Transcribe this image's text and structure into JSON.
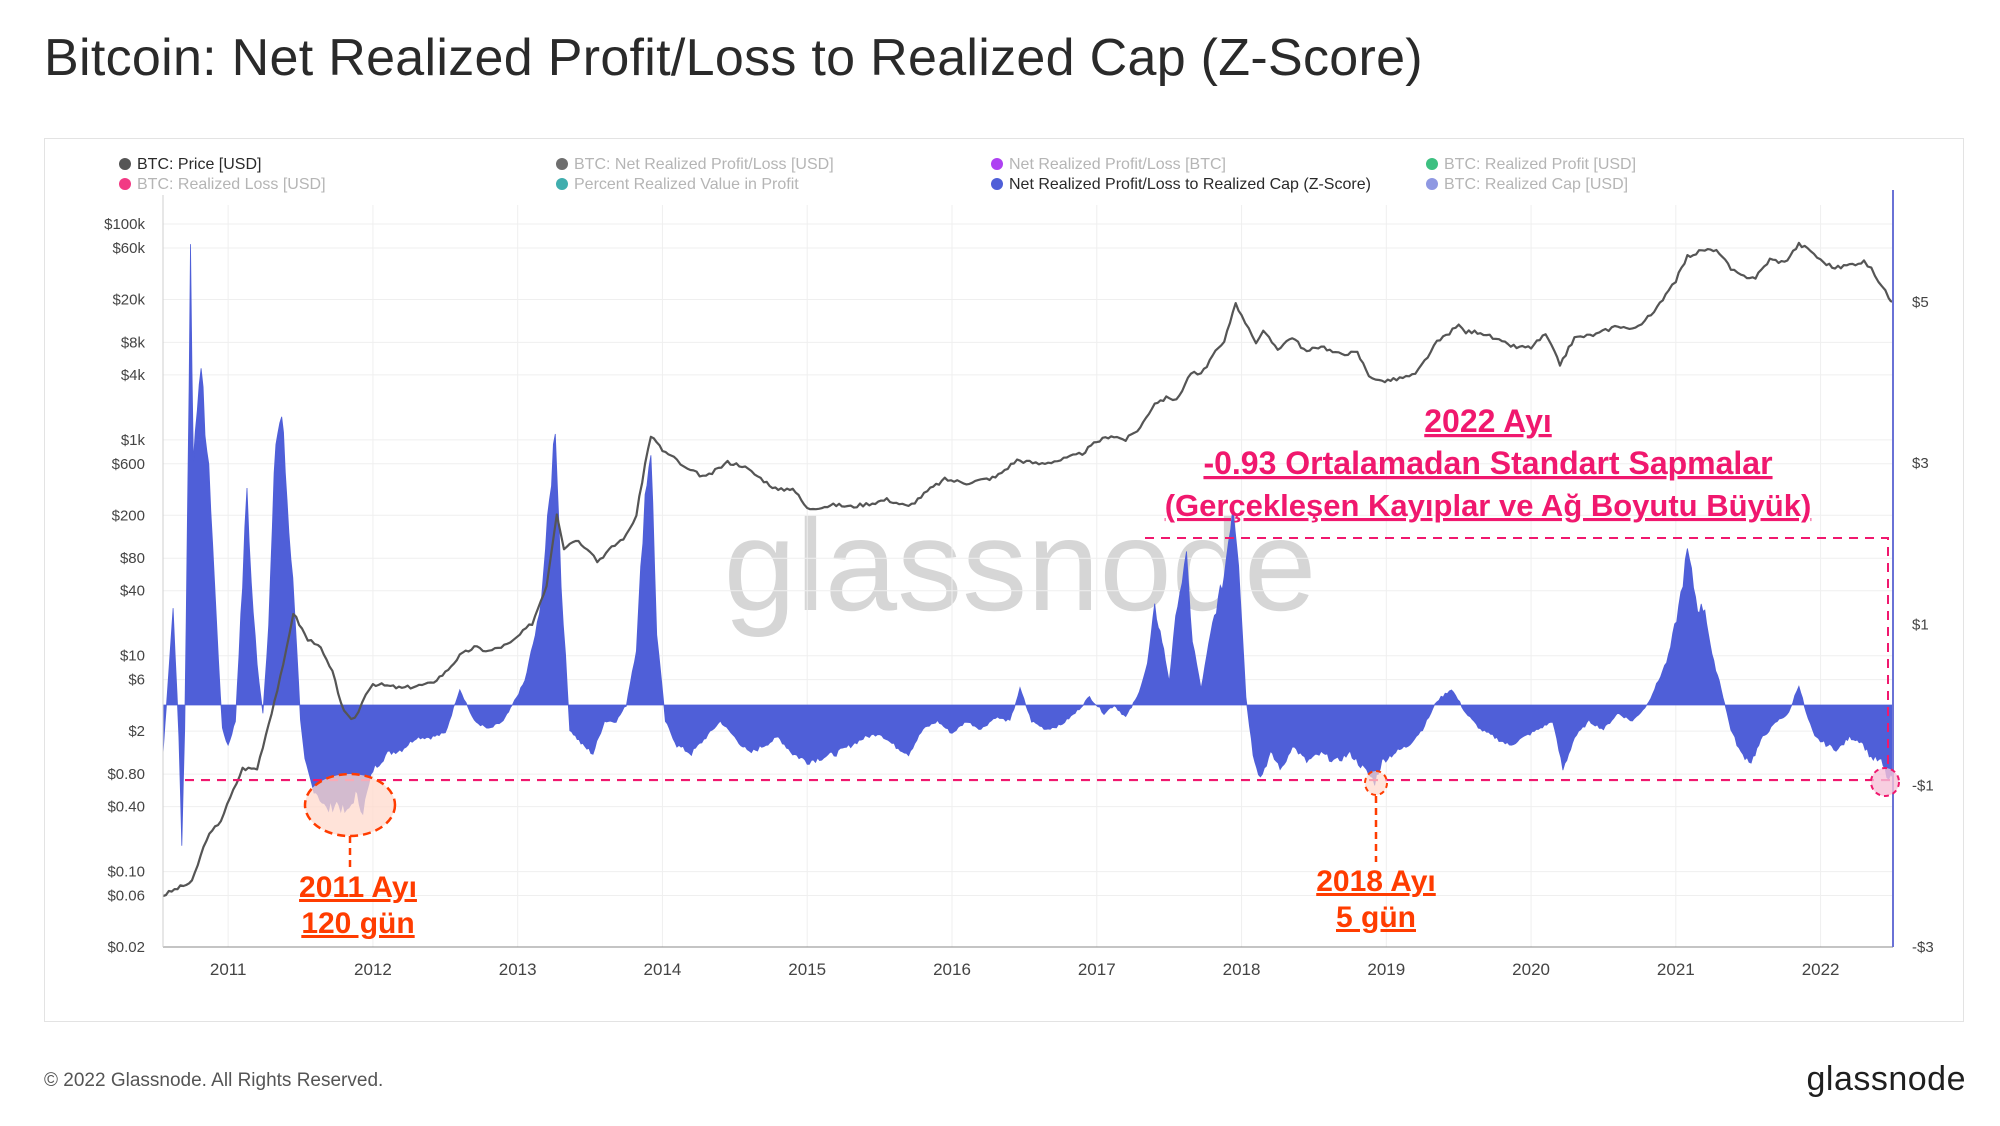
{
  "header": {
    "title": "Bitcoin: Net Realized Profit/Loss to Realized Cap (Z-Score)"
  },
  "footer": {
    "copyright": "© 2022 Glassnode. All Rights Reserved.",
    "logo": "glassnode"
  },
  "colors": {
    "price": "#555555",
    "zscore": "#4f5fd8",
    "annotation_orange": "#ff3c00",
    "annotation_pink": "#f0186e",
    "circle_fill": "#ffd9cc",
    "axis_line": "#6a72d6"
  },
  "chart_data": {
    "type": "line+area",
    "watermark": "glassnode",
    "legend": [
      {
        "label": "BTC: Price [USD]",
        "color": "#555555",
        "active": true
      },
      {
        "label": "BTC: Net Realized Profit/Loss [USD]",
        "color": "#555555",
        "active": false
      },
      {
        "label": "Net Realized Profit/Loss [BTC]",
        "color": "#a020f0",
        "active": false
      },
      {
        "label": "BTC: Realized Profit [USD]",
        "color": "#1bb56b",
        "active": false
      },
      {
        "label": "BTC: Realized Loss [USD]",
        "color": "#f0186e",
        "active": false
      },
      {
        "label": "Percent Realized Value in Profit",
        "color": "#1fa0a0",
        "active": false
      },
      {
        "label": "Net Realized Profit/Loss to Realized Cap (Z-Score)",
        "color": "#4f5fd8",
        "active": true
      },
      {
        "label": "BTC: Realized Cap [USD]",
        "color": "#7b86dd",
        "active": false
      }
    ],
    "x_axis": {
      "ticks": [
        "2011",
        "2012",
        "2013",
        "2014",
        "2015",
        "2016",
        "2017",
        "2018",
        "2019",
        "2020",
        "2021",
        "2022"
      ],
      "range": [
        2010.55,
        2022.5
      ]
    },
    "left_axis": {
      "scale": "log",
      "range": [
        0.02,
        150000
      ],
      "ticks": [
        {
          "v": 100000,
          "label": "$100k"
        },
        {
          "v": 60000,
          "label": "$60k"
        },
        {
          "v": 20000,
          "label": "$20k"
        },
        {
          "v": 8000,
          "label": "$8k"
        },
        {
          "v": 4000,
          "label": "$4k"
        },
        {
          "v": 1000,
          "label": "$1k"
        },
        {
          "v": 600,
          "label": "$600"
        },
        {
          "v": 200,
          "label": "$200"
        },
        {
          "v": 80,
          "label": "$80"
        },
        {
          "v": 40,
          "label": "$40"
        },
        {
          "v": 10,
          "label": "$10"
        },
        {
          "v": 6,
          "label": "$6"
        },
        {
          "v": 2,
          "label": "$2"
        },
        {
          "v": 0.8,
          "label": "$0.80"
        },
        {
          "v": 0.4,
          "label": "$0.40"
        },
        {
          "v": 0.1,
          "label": "$0.10"
        },
        {
          "v": 0.06,
          "label": "$0.06"
        },
        {
          "v": 0.02,
          "label": "$0.02"
        }
      ]
    },
    "right_axis": {
      "scale": "linear",
      "range": [
        -3.0,
        6.2
      ],
      "ticks": [
        {
          "v": 5,
          "label": "$5"
        },
        {
          "v": 3,
          "label": "$3"
        },
        {
          "v": 1,
          "label": "$1"
        },
        {
          "v": -1,
          "label": "-$1"
        },
        {
          "v": -3,
          "label": "-$3"
        }
      ]
    },
    "threshold_z": -0.93,
    "price_series": [
      [
        2010.55,
        0.06
      ],
      [
        2010.65,
        0.07
      ],
      [
        2010.75,
        0.08
      ],
      [
        2010.85,
        0.2
      ],
      [
        2010.95,
        0.3
      ],
      [
        2011.1,
        0.9
      ],
      [
        2011.2,
        0.9
      ],
      [
        2011.3,
        3
      ],
      [
        2011.38,
        8
      ],
      [
        2011.45,
        25
      ],
      [
        2011.55,
        14
      ],
      [
        2011.62,
        13
      ],
      [
        2011.72,
        7
      ],
      [
        2011.8,
        3
      ],
      [
        2011.85,
        2.5
      ],
      [
        2011.9,
        3
      ],
      [
        2011.95,
        4.5
      ],
      [
        2012.0,
        5.5
      ],
      [
        2012.2,
        5
      ],
      [
        2012.4,
        5.5
      ],
      [
        2012.5,
        7
      ],
      [
        2012.6,
        10
      ],
      [
        2012.7,
        12
      ],
      [
        2012.8,
        11
      ],
      [
        2012.95,
        13
      ],
      [
        2013.1,
        20
      ],
      [
        2013.2,
        45
      ],
      [
        2013.27,
        210
      ],
      [
        2013.32,
        100
      ],
      [
        2013.4,
        120
      ],
      [
        2013.5,
        95
      ],
      [
        2013.55,
        75
      ],
      [
        2013.65,
        100
      ],
      [
        2013.75,
        130
      ],
      [
        2013.82,
        200
      ],
      [
        2013.88,
        600
      ],
      [
        2013.92,
        1100
      ],
      [
        2014.0,
        800
      ],
      [
        2014.1,
        650
      ],
      [
        2014.15,
        550
      ],
      [
        2014.3,
        450
      ],
      [
        2014.45,
        620
      ],
      [
        2014.55,
        580
      ],
      [
        2014.7,
        420
      ],
      [
        2014.8,
        340
      ],
      [
        2014.9,
        360
      ],
      [
        2015.0,
        230
      ],
      [
        2015.1,
        240
      ],
      [
        2015.2,
        250
      ],
      [
        2015.3,
        240
      ],
      [
        2015.45,
        260
      ],
      [
        2015.55,
        280
      ],
      [
        2015.7,
        240
      ],
      [
        2015.85,
        350
      ],
      [
        2015.95,
        430
      ],
      [
        2016.1,
        400
      ],
      [
        2016.3,
        450
      ],
      [
        2016.45,
        650
      ],
      [
        2016.6,
        600
      ],
      [
        2016.75,
        650
      ],
      [
        2016.9,
        750
      ],
      [
        2017.0,
        960
      ],
      [
        2017.1,
        1100
      ],
      [
        2017.2,
        1000
      ],
      [
        2017.3,
        1300
      ],
      [
        2017.4,
        2200
      ],
      [
        2017.5,
        2500
      ],
      [
        2017.55,
        2300
      ],
      [
        2017.65,
        4200
      ],
      [
        2017.72,
        4000
      ],
      [
        2017.8,
        6000
      ],
      [
        2017.88,
        8000
      ],
      [
        2017.96,
        19000
      ],
      [
        2018.0,
        14000
      ],
      [
        2018.05,
        11000
      ],
      [
        2018.1,
        8000
      ],
      [
        2018.15,
        10000
      ],
      [
        2018.25,
        7000
      ],
      [
        2018.35,
        9000
      ],
      [
        2018.45,
        6500
      ],
      [
        2018.55,
        7500
      ],
      [
        2018.65,
        6300
      ],
      [
        2018.8,
        6400
      ],
      [
        2018.88,
        4000
      ],
      [
        2018.95,
        3500
      ],
      [
        2019.05,
        3600
      ],
      [
        2019.2,
        4000
      ],
      [
        2019.35,
        8000
      ],
      [
        2019.5,
        11500
      ],
      [
        2019.55,
        10000
      ],
      [
        2019.65,
        10000
      ],
      [
        2019.8,
        8000
      ],
      [
        2019.9,
        7200
      ],
      [
        2020.0,
        7200
      ],
      [
        2020.1,
        9500
      ],
      [
        2020.2,
        5000
      ],
      [
        2020.3,
        8800
      ],
      [
        2020.45,
        9500
      ],
      [
        2020.6,
        11500
      ],
      [
        2020.7,
        10500
      ],
      [
        2020.85,
        15000
      ],
      [
        2020.95,
        25000
      ],
      [
        2021.0,
        30000
      ],
      [
        2021.08,
        50000
      ],
      [
        2021.2,
        58000
      ],
      [
        2021.3,
        55000
      ],
      [
        2021.38,
        38000
      ],
      [
        2021.45,
        33000
      ],
      [
        2021.55,
        32000
      ],
      [
        2021.65,
        47000
      ],
      [
        2021.75,
        44000
      ],
      [
        2021.85,
        65000
      ],
      [
        2021.93,
        57000
      ],
      [
        2022.0,
        46000
      ],
      [
        2022.1,
        39000
      ],
      [
        2022.2,
        42000
      ],
      [
        2022.3,
        45000
      ],
      [
        2022.35,
        38000
      ],
      [
        2022.4,
        30000
      ],
      [
        2022.47,
        21000
      ],
      [
        2022.5,
        19000
      ]
    ],
    "zscore_series": [
      [
        2010.55,
        -0.6
      ],
      [
        2010.62,
        1.2
      ],
      [
        2010.66,
        -0.4
      ],
      [
        2010.68,
        -1.7
      ],
      [
        2010.7,
        -0.3
      ],
      [
        2010.72,
        2.5
      ],
      [
        2010.74,
        5.6
      ],
      [
        2010.76,
        3.0
      ],
      [
        2010.8,
        4.2
      ],
      [
        2010.84,
        3.5
      ],
      [
        2010.88,
        2.5
      ],
      [
        2010.92,
        1.0
      ],
      [
        2010.96,
        -0.3
      ],
      [
        2011.0,
        -0.5
      ],
      [
        2011.05,
        -0.2
      ],
      [
        2011.1,
        1.5
      ],
      [
        2011.13,
        2.7
      ],
      [
        2011.16,
        1.5
      ],
      [
        2011.2,
        0.5
      ],
      [
        2011.24,
        -0.1
      ],
      [
        2011.28,
        1.0
      ],
      [
        2011.33,
        3.3
      ],
      [
        2011.37,
        3.6
      ],
      [
        2011.42,
        2.2
      ],
      [
        2011.46,
        1.2
      ],
      [
        2011.5,
        -0.2
      ],
      [
        2011.53,
        -0.7
      ],
      [
        2011.58,
        -1.0
      ],
      [
        2011.62,
        -1.1
      ],
      [
        2011.68,
        -1.3
      ],
      [
        2011.75,
        -1.2
      ],
      [
        2011.82,
        -1.35
      ],
      [
        2011.88,
        -1.1
      ],
      [
        2011.93,
        -1.3
      ],
      [
        2012.0,
        -0.8
      ],
      [
        2012.1,
        -0.6
      ],
      [
        2012.2,
        -0.55
      ],
      [
        2012.3,
        -0.4
      ],
      [
        2012.4,
        -0.4
      ],
      [
        2012.5,
        -0.35
      ],
      [
        2012.6,
        0.2
      ],
      [
        2012.7,
        -0.2
      ],
      [
        2012.8,
        -0.3
      ],
      [
        2012.9,
        -0.2
      ],
      [
        2012.95,
        -0.05
      ],
      [
        2013.05,
        0.3
      ],
      [
        2013.15,
        1.1
      ],
      [
        2013.22,
        2.5
      ],
      [
        2013.26,
        3.5
      ],
      [
        2013.3,
        1.5
      ],
      [
        2013.36,
        -0.3
      ],
      [
        2013.45,
        -0.5
      ],
      [
        2013.52,
        -0.6
      ],
      [
        2013.6,
        -0.2
      ],
      [
        2013.68,
        -0.2
      ],
      [
        2013.75,
        0.0
      ],
      [
        2013.82,
        0.7
      ],
      [
        2013.88,
        2.6
      ],
      [
        2013.92,
        3.2
      ],
      [
        2013.96,
        0.9
      ],
      [
        2014.02,
        -0.2
      ],
      [
        2014.1,
        -0.5
      ],
      [
        2014.2,
        -0.6
      ],
      [
        2014.3,
        -0.4
      ],
      [
        2014.4,
        -0.2
      ],
      [
        2014.5,
        -0.4
      ],
      [
        2014.6,
        -0.6
      ],
      [
        2014.7,
        -0.5
      ],
      [
        2014.8,
        -0.4
      ],
      [
        2014.9,
        -0.6
      ],
      [
        2015.0,
        -0.7
      ],
      [
        2015.1,
        -0.65
      ],
      [
        2015.2,
        -0.6
      ],
      [
        2015.3,
        -0.5
      ],
      [
        2015.4,
        -0.4
      ],
      [
        2015.5,
        -0.35
      ],
      [
        2015.6,
        -0.5
      ],
      [
        2015.7,
        -0.6
      ],
      [
        2015.8,
        -0.3
      ],
      [
        2015.9,
        -0.2
      ],
      [
        2016.0,
        -0.35
      ],
      [
        2016.1,
        -0.2
      ],
      [
        2016.2,
        -0.3
      ],
      [
        2016.3,
        -0.15
      ],
      [
        2016.4,
        -0.2
      ],
      [
        2016.47,
        0.2
      ],
      [
        2016.55,
        -0.2
      ],
      [
        2016.65,
        -0.3
      ],
      [
        2016.75,
        -0.25
      ],
      [
        2016.85,
        -0.1
      ],
      [
        2016.95,
        0.1
      ],
      [
        2017.05,
        -0.1
      ],
      [
        2017.12,
        0.0
      ],
      [
        2017.2,
        -0.15
      ],
      [
        2017.28,
        0.1
      ],
      [
        2017.35,
        0.5
      ],
      [
        2017.4,
        1.2
      ],
      [
        2017.45,
        0.8
      ],
      [
        2017.5,
        0.3
      ],
      [
        2017.56,
        1.3
      ],
      [
        2017.62,
        1.8
      ],
      [
        2017.66,
        0.8
      ],
      [
        2017.72,
        0.2
      ],
      [
        2017.8,
        1.0
      ],
      [
        2017.88,
        1.6
      ],
      [
        2017.94,
        2.5
      ],
      [
        2017.98,
        1.8
      ],
      [
        2018.03,
        0.1
      ],
      [
        2018.08,
        -0.6
      ],
      [
        2018.13,
        -0.9
      ],
      [
        2018.2,
        -0.6
      ],
      [
        2018.28,
        -0.8
      ],
      [
        2018.35,
        -0.5
      ],
      [
        2018.45,
        -0.7
      ],
      [
        2018.55,
        -0.6
      ],
      [
        2018.65,
        -0.7
      ],
      [
        2018.75,
        -0.6
      ],
      [
        2018.85,
        -0.8
      ],
      [
        2018.92,
        -0.95
      ],
      [
        2018.97,
        -0.7
      ],
      [
        2019.05,
        -0.6
      ],
      [
        2019.15,
        -0.5
      ],
      [
        2019.25,
        -0.3
      ],
      [
        2019.35,
        0.05
      ],
      [
        2019.45,
        0.2
      ],
      [
        2019.55,
        -0.1
      ],
      [
        2019.65,
        -0.3
      ],
      [
        2019.75,
        -0.4
      ],
      [
        2019.85,
        -0.5
      ],
      [
        2019.95,
        -0.4
      ],
      [
        2020.05,
        -0.3
      ],
      [
        2020.15,
        -0.2
      ],
      [
        2020.22,
        -0.8
      ],
      [
        2020.3,
        -0.4
      ],
      [
        2020.4,
        -0.2
      ],
      [
        2020.5,
        -0.3
      ],
      [
        2020.6,
        -0.1
      ],
      [
        2020.7,
        -0.2
      ],
      [
        2020.8,
        0.0
      ],
      [
        2020.88,
        0.3
      ],
      [
        2020.95,
        0.6
      ],
      [
        2021.02,
        1.2
      ],
      [
        2021.08,
        1.9
      ],
      [
        2021.15,
        1.2
      ],
      [
        2021.2,
        1.2
      ],
      [
        2021.25,
        0.6
      ],
      [
        2021.3,
        0.3
      ],
      [
        2021.38,
        -0.3
      ],
      [
        2021.45,
        -0.6
      ],
      [
        2021.52,
        -0.7
      ],
      [
        2021.6,
        -0.4
      ],
      [
        2021.7,
        -0.2
      ],
      [
        2021.78,
        -0.1
      ],
      [
        2021.85,
        0.25
      ],
      [
        2021.9,
        -0.1
      ],
      [
        2021.96,
        -0.4
      ],
      [
        2022.05,
        -0.5
      ],
      [
        2022.12,
        -0.55
      ],
      [
        2022.2,
        -0.4
      ],
      [
        2022.28,
        -0.45
      ],
      [
        2022.35,
        -0.65
      ],
      [
        2022.42,
        -0.7
      ],
      [
        2022.47,
        -0.93
      ],
      [
        2022.5,
        -0.9
      ]
    ],
    "annotations": [
      {
        "text": "2011 Ayı",
        "color": "orange"
      },
      {
        "text": "120 gün",
        "color": "orange"
      },
      {
        "text": "2018 Ayı",
        "color": "orange"
      },
      {
        "text": "5 gün",
        "color": "orange"
      },
      {
        "text": "2022 Ayı",
        "color": "pink"
      },
      {
        "text": "-0.93 Ortalamadan Standart Sapmalar",
        "color": "pink"
      },
      {
        "text": "(Gerçekleşen Kayıplar ve Ağ Boyutu Büyük)",
        "color": "pink"
      }
    ]
  }
}
